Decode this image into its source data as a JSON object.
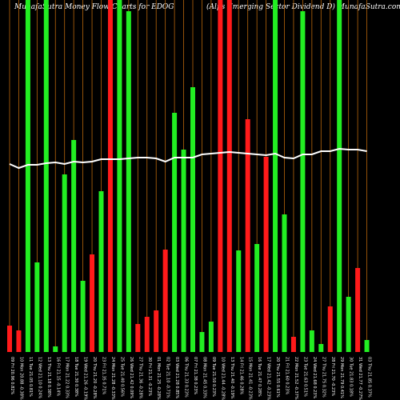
{
  "chart_data": {
    "type": "bar",
    "title": "MunafaSutra  Money Flow  Charts for EDOG",
    "subtitle": "(Alps Emerging Sector Dividend D) MunafaSutra.com",
    "categories": [
      "09 Fri 20.96 0.82%",
      "10 Mon 20.88 -0.38%",
      "11 Tue 21.05 0.81%",
      "12 Wed 21.10 0.24%",
      "13 Thu 21.18 0.38%",
      "16 Fri 21.15 -0.14%",
      "17 Mon 21.22 0.33%",
      "18 Tue 21.30 0.38%",
      "19 Wed 21.26 -0.19%",
      "20 Thu 21.20 -0.28%",
      "23 Fri 21.35 0.71%",
      "24 Mon 21.28 -0.33%",
      "25 Tue 21.40 0.56%",
      "26 Wed 21.42 0.09%",
      "27 Thu 21.36 -0.28%",
      "30 Fri 21.31 -0.23%",
      "01 Mon 21.25 -0.28%",
      "02 Tue 21.10 -0.71%",
      "03 Wed 21.28 0.85%",
      "06 Thu 21.33 0.23%",
      "07 Fri 21.38 0.23%",
      "08 Mon 21.45 0.33%",
      "09 Tue 21.50 0.23%",
      "10 Wed 21.44 -0.28%",
      "13 Thu 21.40 -0.19%",
      "14 Fri 21.46 0.28%",
      "15 Mon 21.41 -0.23%",
      "16 Tue 21.47 0.28%",
      "17 Wed 21.42 -0.23%",
      "20 Thu 21.55 0.61%",
      "21 Fri 21.60 0.23%",
      "22 Mon 21.52 -0.37%",
      "23 Tue 21.63 0.51%",
      "24 Wed 21.68 0.23%",
      "27 Thu 21.75 0.32%",
      "28 Fri 21.70 -0.23%",
      "29 Mon 21.79 0.41%",
      "30 Tue 21.83 0.18%",
      "31 Wed 21.77 -0.27%",
      "03 Thu 21.85 0.37%"
    ],
    "values": [
      33,
      27,
      440,
      112,
      440,
      7,
      222,
      265,
      89,
      122,
      201,
      440,
      440,
      426,
      35,
      44,
      52,
      128,
      299,
      253,
      331,
      25,
      38,
      440,
      440,
      127,
      291,
      135,
      244,
      440,
      172,
      19,
      426,
      27,
      10,
      57,
      440,
      69,
      105,
      15
    ],
    "bar_colors": [
      "#ff1a1a",
      "#ff1a1a",
      "#22ee22",
      "#22ee22",
      "#22ee22",
      "#22ee22",
      "#22ee22",
      "#22ee22",
      "#22ee22",
      "#ff1a1a",
      "#22ee22",
      "#ff1a1a",
      "#22ee22",
      "#22ee22",
      "#ff1a1a",
      "#ff1a1a",
      "#ff1a1a",
      "#ff1a1a",
      "#22ee22",
      "#22ee22",
      "#22ee22",
      "#22ee22",
      "#22ee22",
      "#ff1a1a",
      "#ff1a1a",
      "#22ee22",
      "#ff1a1a",
      "#22ee22",
      "#ff1a1a",
      "#22ee22",
      "#22ee22",
      "#ff1a1a",
      "#22ee22",
      "#22ee22",
      "#22ee22",
      "#ff1a1a",
      "#22ee22",
      "#22ee22",
      "#ff1a1a",
      "#22ee22"
    ],
    "line_values": [
      235,
      230,
      234,
      234,
      236,
      237,
      235,
      238,
      237,
      238,
      241,
      241,
      241,
      242,
      243,
      243,
      242,
      238,
      243,
      243,
      243,
      247,
      248,
      249,
      250,
      249,
      248,
      247,
      246,
      248,
      243,
      242,
      247,
      247,
      251,
      251,
      254,
      253,
      253,
      251
    ],
    "line_color": "#ffffff",
    "grid_color": "#b8660b",
    "ylim": [
      0,
      440
    ]
  }
}
